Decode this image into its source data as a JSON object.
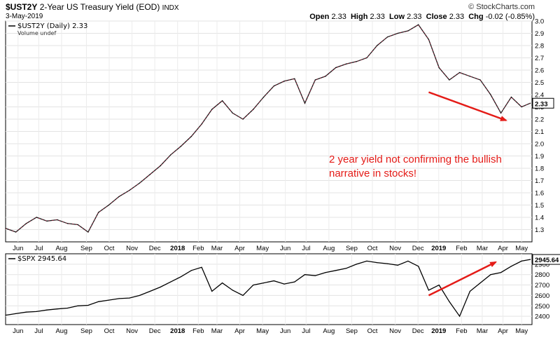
{
  "header": {
    "symbol": "$UST2Y",
    "description": "2-Year US Treasury Yield (EOD)",
    "exchange": "INDX",
    "date": "3-May-2019",
    "watermark": "© StockCharts.com",
    "ohlc": {
      "open_label": "Open",
      "open": "2.33",
      "high_label": "High",
      "high": "2.33",
      "low_label": "Low",
      "low": "2.33",
      "close_label": "Close",
      "close": "2.33",
      "chg_label": "Chg",
      "chg": "-0.02 (-0.85%)"
    }
  },
  "chart_data": [
    {
      "type": "line",
      "title": "$UST2Y 2-Year US Treasury Yield (EOD)",
      "legend": "$UST2Y (Daily) 2.33",
      "sublegend": "Volume undef",
      "ylim": [
        1.2,
        3.0
      ],
      "yticks": [
        "3.0",
        "2.9",
        "2.8",
        "2.7",
        "2.6",
        "2.5",
        "2.4",
        "2.3",
        "2.2",
        "2.1",
        "2.0",
        "1.9",
        "1.8",
        "1.7",
        "1.6",
        "1.5",
        "1.4",
        "1.3"
      ],
      "last_value_label": "2.33",
      "x": [
        0,
        2,
        4,
        6,
        8,
        10,
        12,
        14,
        16,
        18,
        20,
        22,
        24,
        26,
        28,
        30,
        32,
        34,
        36,
        38,
        40,
        42,
        44,
        46,
        48,
        50,
        52,
        54,
        56,
        58,
        60,
        62,
        64,
        66,
        68,
        70,
        72,
        74,
        76,
        78,
        80,
        82,
        84,
        86,
        88,
        90,
        92,
        94,
        96,
        98,
        100,
        101.7
      ],
      "values": [
        1.31,
        1.28,
        1.35,
        1.4,
        1.37,
        1.38,
        1.35,
        1.34,
        1.28,
        1.44,
        1.5,
        1.57,
        1.62,
        1.68,
        1.75,
        1.82,
        1.91,
        1.98,
        2.06,
        2.16,
        2.28,
        2.35,
        2.25,
        2.2,
        2.28,
        2.38,
        2.47,
        2.51,
        2.53,
        2.33,
        2.52,
        2.55,
        2.62,
        2.65,
        2.67,
        2.7,
        2.8,
        2.87,
        2.9,
        2.92,
        2.97,
        2.85,
        2.62,
        2.52,
        2.58,
        2.55,
        2.52,
        2.4,
        2.25,
        2.38,
        2.3,
        2.33
      ],
      "annotation": {
        "text_lines": [
          "2 year yield not confirming the bullish",
          "narrative in stocks!"
        ],
        "arrow_from": [
          82,
          2.42
        ],
        "arrow_to": [
          97,
          2.19
        ],
        "color": "#e41b17"
      }
    },
    {
      "type": "line",
      "title": "$SPX",
      "legend": "$SPX 2945.64",
      "ylim": [
        2320,
        3000
      ],
      "yticks": [
        "2900",
        "2800",
        "2700",
        "2600",
        "2500",
        "2400"
      ],
      "last_value_label": "2945.64",
      "x": [
        0,
        2,
        4,
        6,
        8,
        10,
        12,
        14,
        16,
        18,
        20,
        22,
        24,
        26,
        28,
        30,
        32,
        34,
        36,
        38,
        40,
        42,
        44,
        46,
        48,
        50,
        52,
        54,
        56,
        58,
        60,
        62,
        64,
        66,
        68,
        70,
        72,
        74,
        76,
        78,
        80,
        82,
        84,
        86,
        88,
        90,
        92,
        94,
        96,
        98,
        100,
        101.7
      ],
      "values": [
        2410,
        2425,
        2440,
        2445,
        2460,
        2470,
        2478,
        2500,
        2505,
        2540,
        2555,
        2570,
        2575,
        2600,
        2640,
        2680,
        2730,
        2780,
        2840,
        2870,
        2640,
        2720,
        2650,
        2600,
        2700,
        2720,
        2740,
        2710,
        2730,
        2800,
        2790,
        2820,
        2840,
        2860,
        2900,
        2930,
        2915,
        2905,
        2890,
        2930,
        2880,
        2650,
        2700,
        2540,
        2400,
        2640,
        2720,
        2800,
        2820,
        2880,
        2930,
        2945.64
      ],
      "annotation": {
        "arrow_from": [
          82,
          2600
        ],
        "arrow_to": [
          95,
          2920
        ],
        "color": "#e41b17"
      }
    }
  ],
  "x_axis": {
    "ticks": [
      {
        "x": 3,
        "label": "Jun",
        "bold": false
      },
      {
        "x": 8,
        "label": "Jul",
        "bold": false
      },
      {
        "x": 13.5,
        "label": "Aug",
        "bold": false
      },
      {
        "x": 19.5,
        "label": "Sep",
        "bold": false
      },
      {
        "x": 25,
        "label": "Oct",
        "bold": false
      },
      {
        "x": 30.5,
        "label": "Nov",
        "bold": false
      },
      {
        "x": 36,
        "label": "Dec",
        "bold": false
      },
      {
        "x": 41.5,
        "label": "2018",
        "bold": true
      },
      {
        "x": 46.5,
        "label": "Feb",
        "bold": false
      },
      {
        "x": 51,
        "label": "Mar",
        "bold": false
      },
      {
        "x": 56.5,
        "label": "Apr",
        "bold": false
      },
      {
        "x": 62,
        "label": "May",
        "bold": false
      },
      {
        "x": 67.5,
        "label": "Jun",
        "bold": false
      },
      {
        "x": 72.5,
        "label": "Jul",
        "bold": false
      },
      {
        "x": 78,
        "label": "Aug",
        "bold": false
      },
      {
        "x": 83.5,
        "label": "Sep",
        "bold": false
      },
      {
        "x": 88.5,
        "label": "Oct",
        "bold": false
      },
      {
        "x": 94,
        "label": "Nov",
        "bold": false
      },
      {
        "x": 99.5,
        "label": "Dec",
        "bold": false
      },
      {
        "x": 104.5,
        "label": "2019",
        "bold": true
      },
      {
        "x": 110,
        "label": "Feb",
        "bold": false
      },
      {
        "x": 115,
        "label": "Mar",
        "bold": false
      },
      {
        "x": 120,
        "label": "Apr",
        "bold": false
      },
      {
        "x": 124.5,
        "label": "May",
        "bold": false
      }
    ],
    "domain": [
      0,
      127
    ]
  }
}
